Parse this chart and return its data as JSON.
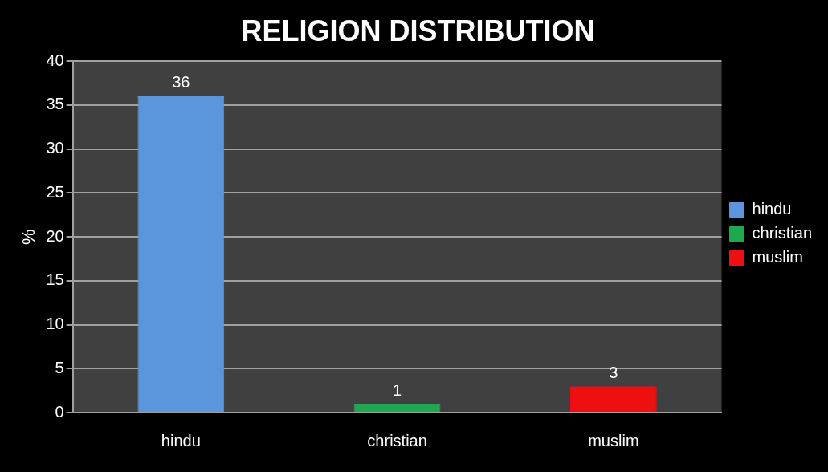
{
  "chart_data": {
    "type": "bar",
    "title": "RELIGION DISTRIBUTION",
    "ylabel": "%",
    "categories": [
      "hindu",
      "christian",
      "muslim"
    ],
    "series": [
      {
        "name": "hindu",
        "color": "#5b96dc",
        "values": [
          36,
          null,
          null
        ]
      },
      {
        "name": "christian",
        "color": "#1fa84f",
        "values": [
          null,
          1,
          null
        ]
      },
      {
        "name": "muslim",
        "color": "#ee1010",
        "values": [
          null,
          null,
          3
        ]
      }
    ],
    "ylim": [
      0,
      40
    ],
    "yticks": [
      0,
      5,
      10,
      15,
      20,
      25,
      30,
      35,
      40
    ],
    "grid": "y",
    "legend": "right",
    "data_labels": true
  }
}
